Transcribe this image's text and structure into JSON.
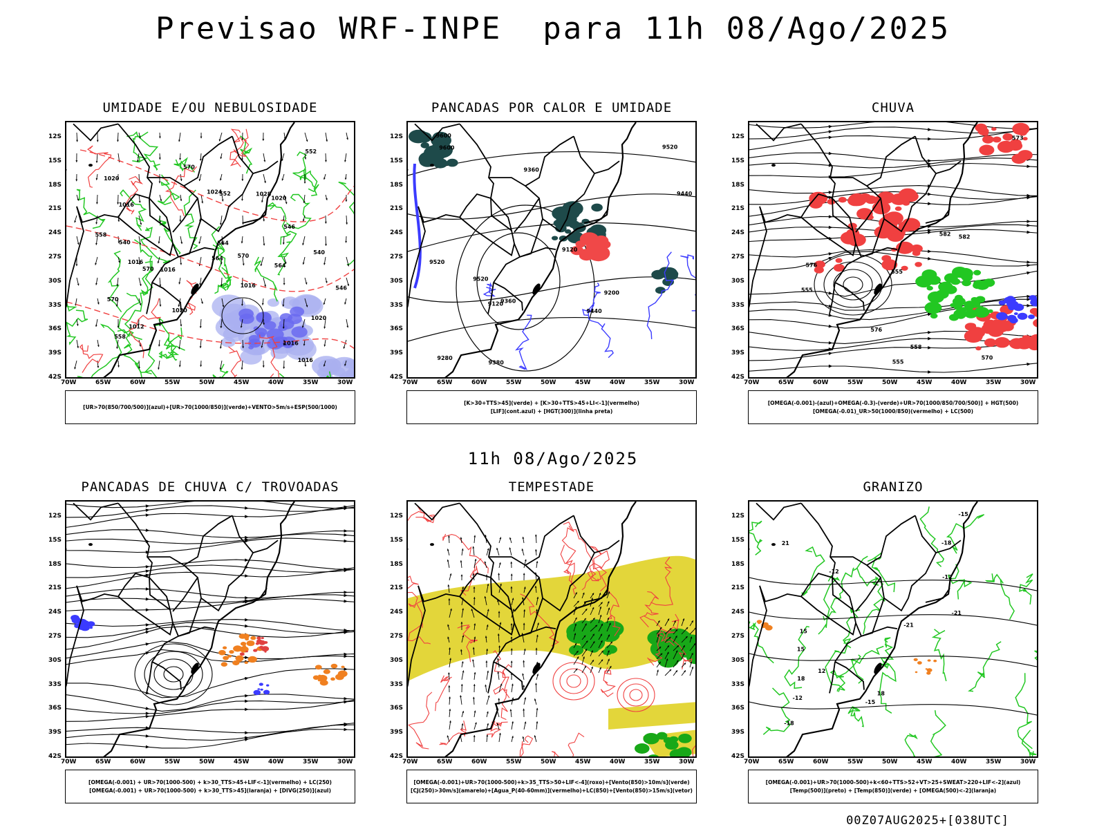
{
  "title": "Previsao WRF-INPE  para 11h 08/Ago/2025",
  "mid_date": "11h 08/Ago/2025",
  "footer": "00Z07AUG2025+[038UTC]",
  "lat_ticks": [
    "12S",
    "15S",
    "18S",
    "21S",
    "24S",
    "27S",
    "30S",
    "33S",
    "36S",
    "39S",
    "42S"
  ],
  "lon_ticks": [
    "70W",
    "65W",
    "60W",
    "55W",
    "50W",
    "45W",
    "40W",
    "35W",
    "30W"
  ],
  "colors": {
    "blue": "#3b3bff",
    "green": "#22c722",
    "red": "#f04040",
    "teal": "#1e4a4a",
    "orange": "#f08020",
    "yellow": "#e3d63a",
    "lightblue": "#aab0f0",
    "black": "#000000"
  },
  "panels": [
    {
      "title": "UMIDADE E/OU NEBULOSIDADE",
      "legend": [
        "[UR>70(850/700/500)](azul)+[UR>70(1000/850)](verde)+VENTO>5m/s+ESP(500/1000)"
      ],
      "contour_labels": [
        "1016",
        "1016",
        "1016",
        "1020",
        "1020",
        "1016",
        "1012",
        "1016",
        "1020",
        "1024",
        "1028",
        "1016",
        "1020",
        "570",
        "570",
        "570",
        "564",
        "564",
        "558",
        "558",
        "552",
        "552",
        "546",
        "546",
        "540",
        "540",
        "570",
        "564"
      ]
    },
    {
      "title": "PANCADAS POR CALOR E UMIDADE",
      "legend": [
        "[K>30+TTS>45](verde) + [K>30+TTS>45+LI<-1](vermelho)",
        "[LIF](cont.azul) + [HGT(300)](linha preta)"
      ],
      "contour_labels": [
        "9600",
        "9600",
        "9520",
        "9520",
        "9440",
        "9440",
        "9360",
        "9360",
        "9280",
        "9200",
        "9120",
        "9120",
        "9380",
        "9520"
      ]
    },
    {
      "title": "CHUVA",
      "legend": [
        "[OMEGA(-0.001)-(azul)+OMEGA(-0.3)-(verde)+UR>70(1000/850/700/500)] + HGT(500)",
        "[OMEGA(-0.01)_UR>50(1000/850)(vermelho) + LC(500)"
      ],
      "contour_labels": [
        "582",
        "582",
        "576",
        "576",
        "570",
        "573",
        "558",
        "555",
        "555",
        "555"
      ]
    },
    {
      "title": "PANCADAS DE CHUVA C/ TROVOADAS",
      "legend": [
        "[OMEGA(-0.001) + UR>70(1000-500) + k>30_TTS>45+LIF<-1](vermelho) + LC(250)",
        "[OMEGA(-0.001) + UR>70(1000-500) + k>30_TTS>45](laranja) + [DIVG(250)](azul)"
      ],
      "contour_labels": []
    },
    {
      "title": "TEMPESTADE",
      "legend": [
        "[OMEGA(-0.001)+UR>70(1000-500)+k>35_TTS>50+LIF<-4](roxo)+[Vento(850)>10m/s](verde)",
        "[CJ(250)>30m/s](amarelo)+[Agua_P(40-60mm)](vermelho)+LC(850)+[Vento(850)>15m/s](vetor)"
      ],
      "contour_labels": []
    },
    {
      "title": "GRANIZO",
      "legend": [
        "[OMEGA(-0.001)+UR>70(1000-500)+k<60+TTS>52+VT>25+SWEAT>220+LIF<-2](azul)",
        "[Temp(500)](preto) + [Temp(850)](verde) + [OMEGA(500)<-2](laranja)"
      ],
      "contour_labels": [
        "-15",
        "-12",
        "-12",
        "-18",
        "-21",
        "-21",
        "-18",
        "-15",
        "-12",
        "12",
        "15",
        "18",
        "18",
        "21",
        "15"
      ]
    }
  ]
}
